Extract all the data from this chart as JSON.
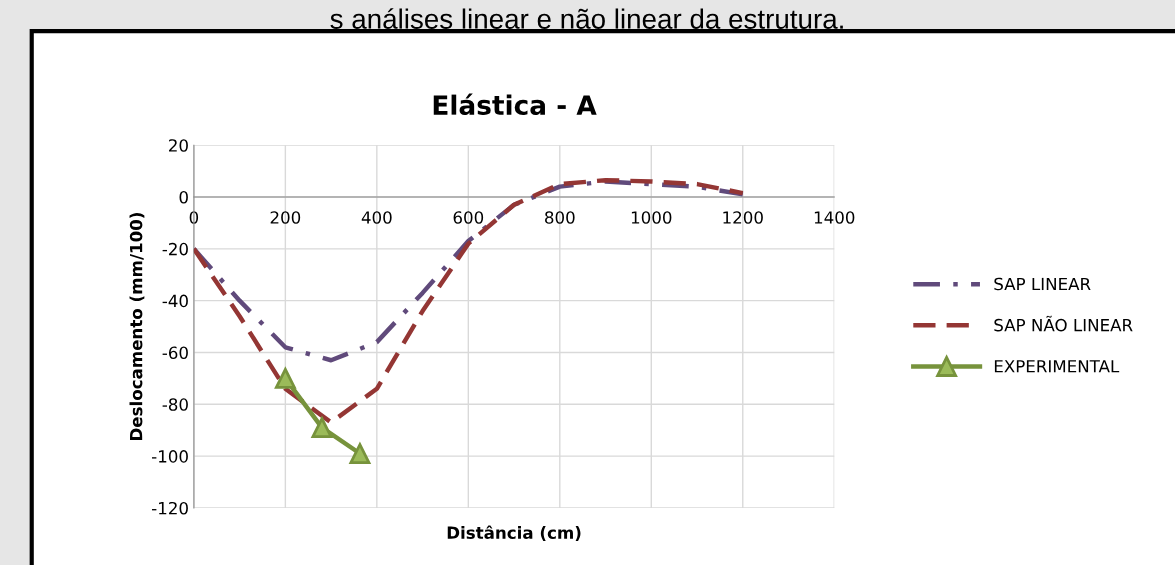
{
  "chart_data": {
    "type": "line",
    "title": "Elástica - A",
    "xlabel": "Distância (cm)",
    "ylabel": "Deslocamento (mm/100)",
    "annotations": [
      "s análises linear e não linear da estrutura."
    ],
    "series": [
      {
        "name": "SAP LINEAR",
        "color": "#604a7b",
        "line_style": "dashdot",
        "marker": "none",
        "x": [
          0,
          100,
          200,
          300,
          400,
          500,
          600,
          700,
          800,
          900,
          1000,
          1100,
          1200
        ],
        "values": [
          -20,
          -40,
          -58,
          -63,
          -56,
          -37,
          -17,
          -3,
          4,
          6,
          5,
          4,
          1
        ]
      },
      {
        "name": "SAP NÃO LINEAR",
        "color": "#943634",
        "line_style": "dashed",
        "marker": "none",
        "x": [
          0,
          100,
          200,
          300,
          400,
          500,
          600,
          700,
          800,
          900,
          1000,
          1100,
          1200
        ],
        "values": [
          -20,
          -46,
          -74,
          -87,
          -74,
          -44,
          -18,
          -3,
          5,
          6.5,
          6,
          5,
          1.5
        ]
      },
      {
        "name": "EXPERIMENTAL",
        "color": "#77933c",
        "line_style": "solid",
        "marker": "triangle",
        "x": [
          200,
          280,
          363
        ],
        "values": [
          -70,
          -89,
          -99
        ]
      }
    ],
    "xlim": [
      0,
      1400
    ],
    "xticks": [
      0,
      200,
      400,
      600,
      800,
      1000,
      1200,
      1400
    ],
    "ylim": [
      -120,
      20
    ],
    "yticks": [
      -120,
      -100,
      -80,
      -60,
      -40,
      -20,
      0,
      20
    ],
    "grid": true,
    "legend": "right"
  }
}
